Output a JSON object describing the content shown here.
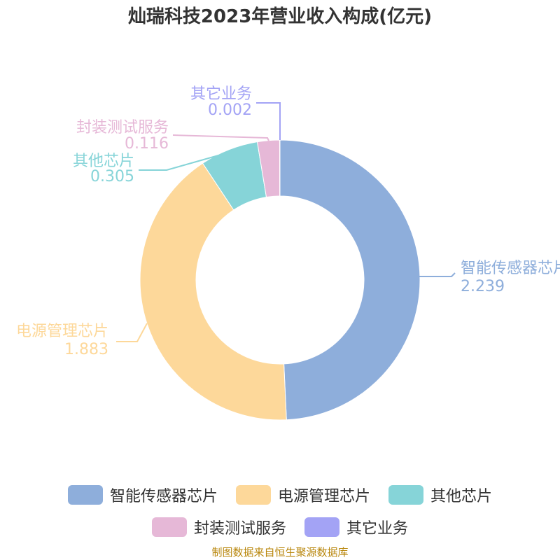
{
  "colors": {
    "title": "#333333",
    "source": "#b8860b"
  },
  "chart_data": {
    "type": "pie",
    "variant": "donut",
    "title": "灿瑞科技2023年营业收入构成(亿元)",
    "legend_position": "bottom",
    "slices": [
      {
        "name": "智能传感器芯片",
        "value": 2.239,
        "label": "2.239",
        "color": "#8eaedb"
      },
      {
        "name": "电源管理芯片",
        "value": 1.883,
        "label": "1.883",
        "color": "#fdd89a"
      },
      {
        "name": "其他芯片",
        "value": 0.305,
        "label": "0.305",
        "color": "#86d4d8"
      },
      {
        "name": "封装测试服务",
        "value": 0.116,
        "label": "0.116",
        "color": "#e6b8d7"
      },
      {
        "name": "其它业务",
        "value": 0.002,
        "label": "0.002",
        "color": "#a3a3f5"
      }
    ]
  },
  "source_note": "制图数据来自恒生聚源数据库"
}
